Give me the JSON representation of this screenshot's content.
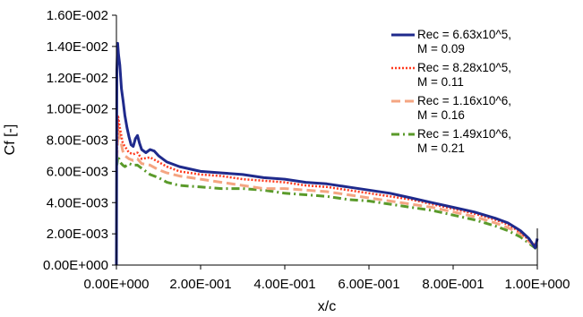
{
  "chart_data": {
    "type": "line",
    "title": "",
    "xlabel": "x/c",
    "ylabel": "Cf [-]",
    "xlim": [
      0,
      1
    ],
    "ylim": [
      0,
      0.016
    ],
    "x_ticks": [
      {
        "value": 0,
        "label": "0.00E+000"
      },
      {
        "value": 0.2,
        "label": "2.00E-001"
      },
      {
        "value": 0.4,
        "label": "4.00E-001"
      },
      {
        "value": 0.6,
        "label": "6.00E-001"
      },
      {
        "value": 0.8,
        "label": "8.00E-001"
      },
      {
        "value": 1.0,
        "label": "1.00E+000"
      }
    ],
    "y_ticks": [
      {
        "value": 0,
        "label": "0.00E+000"
      },
      {
        "value": 0.002,
        "label": "2.00E-003"
      },
      {
        "value": 0.004,
        "label": "4.00E-003"
      },
      {
        "value": 0.006,
        "label": "6.00E-003"
      },
      {
        "value": 0.008,
        "label": "8.00E-003"
      },
      {
        "value": 0.01,
        "label": "1.00E-002"
      },
      {
        "value": 0.012,
        "label": "1.20E-002"
      },
      {
        "value": 0.014,
        "label": "1.40E-002"
      },
      {
        "value": 0.016,
        "label": "1.60E-002"
      }
    ],
    "grid": false,
    "legend_position": "top-right",
    "series": [
      {
        "name": "Rec = 6.63x10^5,",
        "name_line2": "M  = 0.09",
        "color": "#1f2a8c",
        "dash": "solid",
        "points": [
          [
            0,
            0
          ],
          [
            0.001,
            0.0125
          ],
          [
            0.003,
            0.0142
          ],
          [
            0.005,
            0.0135
          ],
          [
            0.008,
            0.0128
          ],
          [
            0.012,
            0.0113
          ],
          [
            0.016,
            0.0105
          ],
          [
            0.02,
            0.0096
          ],
          [
            0.025,
            0.0088
          ],
          [
            0.03,
            0.0082
          ],
          [
            0.035,
            0.0077
          ],
          [
            0.04,
            0.0076
          ],
          [
            0.045,
            0.0081
          ],
          [
            0.05,
            0.0083
          ],
          [
            0.055,
            0.0078
          ],
          [
            0.06,
            0.0074
          ],
          [
            0.07,
            0.0072
          ],
          [
            0.08,
            0.0074
          ],
          [
            0.09,
            0.0073
          ],
          [
            0.1,
            0.007
          ],
          [
            0.12,
            0.0066
          ],
          [
            0.15,
            0.0063
          ],
          [
            0.2,
            0.006
          ],
          [
            0.25,
            0.0059
          ],
          [
            0.3,
            0.0058
          ],
          [
            0.35,
            0.0056
          ],
          [
            0.4,
            0.0055
          ],
          [
            0.45,
            0.0053
          ],
          [
            0.5,
            0.0052
          ],
          [
            0.55,
            0.005
          ],
          [
            0.6,
            0.0048
          ],
          [
            0.65,
            0.0046
          ],
          [
            0.7,
            0.0043
          ],
          [
            0.75,
            0.004
          ],
          [
            0.8,
            0.0037
          ],
          [
            0.85,
            0.0034
          ],
          [
            0.9,
            0.003
          ],
          [
            0.93,
            0.0027
          ],
          [
            0.96,
            0.0022
          ],
          [
            0.98,
            0.0017
          ],
          [
            0.99,
            0.0013
          ],
          [
            0.995,
            0.0011
          ],
          [
            1.0,
            0.0017
          ]
        ]
      },
      {
        "name": "Rec = 8.28x10^5,",
        "name_line2": "M  = 0.11",
        "color": "#ff3b1f",
        "dash": "dotted",
        "points": [
          [
            0.001,
            0.0072
          ],
          [
            0.004,
            0.0095
          ],
          [
            0.008,
            0.0088
          ],
          [
            0.015,
            0.0078
          ],
          [
            0.02,
            0.0076
          ],
          [
            0.03,
            0.0072
          ],
          [
            0.04,
            0.0071
          ],
          [
            0.05,
            0.0072
          ],
          [
            0.06,
            0.0068
          ],
          [
            0.08,
            0.0069
          ],
          [
            0.1,
            0.0066
          ],
          [
            0.12,
            0.0063
          ],
          [
            0.15,
            0.006
          ],
          [
            0.2,
            0.0058
          ],
          [
            0.25,
            0.0057
          ],
          [
            0.3,
            0.0055
          ],
          [
            0.35,
            0.0054
          ],
          [
            0.4,
            0.0053
          ],
          [
            0.45,
            0.0051
          ],
          [
            0.5,
            0.005
          ],
          [
            0.55,
            0.0048
          ],
          [
            0.6,
            0.0046
          ],
          [
            0.65,
            0.0044
          ],
          [
            0.7,
            0.0042
          ],
          [
            0.75,
            0.0039
          ],
          [
            0.8,
            0.0036
          ],
          [
            0.85,
            0.0033
          ],
          [
            0.9,
            0.0029
          ],
          [
            0.93,
            0.0026
          ],
          [
            0.96,
            0.0021
          ],
          [
            0.98,
            0.0016
          ],
          [
            1.0,
            0.0012
          ]
        ]
      },
      {
        "name": "Rec = 1.16x10^6,",
        "name_line2": "M  = 0.16",
        "color": "#f4a582",
        "dash": "long-dash",
        "points": [
          [
            0.001,
            0.0068
          ],
          [
            0.004,
            0.009
          ],
          [
            0.008,
            0.0082
          ],
          [
            0.015,
            0.0073
          ],
          [
            0.02,
            0.007
          ],
          [
            0.03,
            0.0068
          ],
          [
            0.04,
            0.0067
          ],
          [
            0.05,
            0.0068
          ],
          [
            0.06,
            0.0065
          ],
          [
            0.08,
            0.0064
          ],
          [
            0.1,
            0.0061
          ],
          [
            0.12,
            0.0059
          ],
          [
            0.15,
            0.0057
          ],
          [
            0.2,
            0.0055
          ],
          [
            0.25,
            0.0053
          ],
          [
            0.3,
            0.0051
          ],
          [
            0.35,
            0.0049
          ],
          [
            0.4,
            0.0049
          ],
          [
            0.45,
            0.0048
          ],
          [
            0.5,
            0.0047
          ],
          [
            0.55,
            0.0045
          ],
          [
            0.6,
            0.0043
          ],
          [
            0.65,
            0.0041
          ],
          [
            0.7,
            0.0039
          ],
          [
            0.75,
            0.0037
          ],
          [
            0.8,
            0.0034
          ],
          [
            0.85,
            0.0031
          ],
          [
            0.9,
            0.0027
          ],
          [
            0.93,
            0.0024
          ],
          [
            0.96,
            0.002
          ],
          [
            0.98,
            0.0015
          ],
          [
            1.0,
            0.0011
          ]
        ]
      },
      {
        "name": "Rec = 1.49x10^6,",
        "name_line2": "M  = 0.21",
        "color": "#5a9a2a",
        "dash": "dash-dot",
        "points": [
          [
            0.001,
            0.0064
          ],
          [
            0.004,
            0.007
          ],
          [
            0.008,
            0.0066
          ],
          [
            0.015,
            0.0064
          ],
          [
            0.02,
            0.0063
          ],
          [
            0.03,
            0.0065
          ],
          [
            0.04,
            0.0064
          ],
          [
            0.05,
            0.0064
          ],
          [
            0.06,
            0.0062
          ],
          [
            0.08,
            0.0058
          ],
          [
            0.1,
            0.0056
          ],
          [
            0.12,
            0.0053
          ],
          [
            0.15,
            0.0051
          ],
          [
            0.2,
            0.005
          ],
          [
            0.25,
            0.0049
          ],
          [
            0.3,
            0.0049
          ],
          [
            0.35,
            0.0048
          ],
          [
            0.4,
            0.0046
          ],
          [
            0.45,
            0.0045
          ],
          [
            0.5,
            0.0044
          ],
          [
            0.55,
            0.0042
          ],
          [
            0.6,
            0.0041
          ],
          [
            0.65,
            0.0039
          ],
          [
            0.7,
            0.0037
          ],
          [
            0.75,
            0.0035
          ],
          [
            0.8,
            0.0032
          ],
          [
            0.85,
            0.0029
          ],
          [
            0.9,
            0.0025
          ],
          [
            0.93,
            0.0022
          ],
          [
            0.96,
            0.0018
          ],
          [
            0.98,
            0.0014
          ],
          [
            1.0,
            0.001
          ]
        ]
      }
    ]
  }
}
